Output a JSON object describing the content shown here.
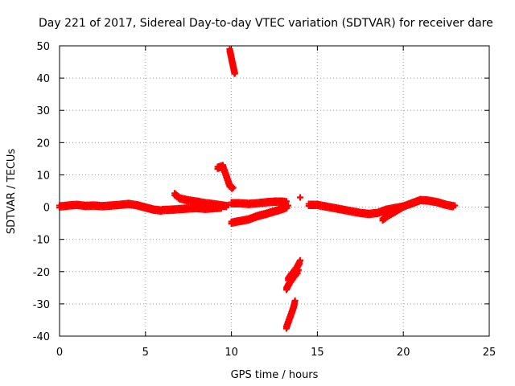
{
  "chart_data": {
    "type": "scatter",
    "title": "Day 221 of 2017, Sidereal Day-to-day VTEC variation (SDTVAR) for receiver dare",
    "xlabel": "GPS time / hours",
    "ylabel": "SDTVAR / TECUs",
    "xlim": [
      0,
      25
    ],
    "ylim": [
      -40,
      50
    ],
    "xticks": [
      0,
      5,
      10,
      15,
      20,
      25
    ],
    "yticks": [
      -40,
      -30,
      -20,
      -10,
      0,
      10,
      20,
      30,
      40,
      50
    ],
    "grid": true,
    "marker": "+",
    "color": "#ff0000",
    "series": [
      {
        "name": "band-0-6",
        "points": [
          [
            0,
            0.5
          ],
          [
            0.5,
            0.8
          ],
          [
            1,
            1.0
          ],
          [
            1.5,
            0.7
          ],
          [
            2,
            0.8
          ],
          [
            2.5,
            0.6
          ],
          [
            3,
            0.8
          ],
          [
            3.5,
            1.0
          ],
          [
            4,
            1.3
          ],
          [
            4.5,
            0.9
          ],
          [
            5,
            0.2
          ],
          [
            5.5,
            -0.5
          ],
          [
            6,
            -0.8
          ]
        ]
      },
      {
        "name": "band-6-10-upper",
        "points": [
          [
            6.7,
            4.3
          ],
          [
            7,
            3.0
          ],
          [
            7.5,
            2.4
          ],
          [
            8,
            2.0
          ],
          [
            8.5,
            1.5
          ],
          [
            9,
            1.2
          ],
          [
            9.5,
            0.8
          ],
          [
            9.8,
            0.6
          ]
        ]
      },
      {
        "name": "band-6-10-lower",
        "points": [
          [
            6,
            -0.6
          ],
          [
            6.5,
            -0.5
          ],
          [
            7,
            -0.3
          ],
          [
            7.5,
            -0.1
          ],
          [
            8,
            0.0
          ],
          [
            8.5,
            -0.2
          ],
          [
            9,
            0.0
          ],
          [
            9.5,
            0.2
          ]
        ]
      },
      {
        "name": "cluster-9.5",
        "points": [
          [
            9.2,
            12.5
          ],
          [
            9.5,
            13.0
          ],
          [
            9.9,
            7.0
          ],
          [
            10.1,
            6.0
          ]
        ]
      },
      {
        "name": "steep-10",
        "points": [
          [
            9.9,
            49.0
          ],
          [
            10.0,
            46.5
          ],
          [
            10.1,
            44.0
          ],
          [
            10.2,
            41.5
          ]
        ]
      },
      {
        "name": "band-10-13-upper",
        "points": [
          [
            10,
            1.5
          ],
          [
            10.5,
            1.5
          ],
          [
            11,
            1.3
          ],
          [
            11.5,
            1.5
          ],
          [
            12,
            1.8
          ],
          [
            12.5,
            2.0
          ],
          [
            13,
            2.0
          ],
          [
            13.2,
            1.8
          ]
        ]
      },
      {
        "name": "band-10-13-lower",
        "points": [
          [
            10,
            -4.5
          ],
          [
            10.5,
            -4.0
          ],
          [
            11,
            -3.5
          ],
          [
            11.5,
            -2.5
          ],
          [
            12,
            -1.8
          ],
          [
            12.5,
            -1.0
          ],
          [
            13,
            -0.2
          ],
          [
            13.3,
            0.5
          ]
        ]
      },
      {
        "name": "steep-13.5-a",
        "points": [
          [
            13.2,
            -37.0
          ],
          [
            13.4,
            -34.0
          ],
          [
            13.6,
            -31.0
          ],
          [
            13.7,
            -29.0
          ]
        ]
      },
      {
        "name": "steep-13.5-b",
        "points": [
          [
            13.3,
            -22.0
          ],
          [
            13.5,
            -20.5
          ],
          [
            13.8,
            -18.5
          ],
          [
            14.0,
            -16.5
          ]
        ]
      },
      {
        "name": "steep-13.5-c",
        "points": [
          [
            13.2,
            -25.0
          ],
          [
            13.4,
            -23.0
          ],
          [
            13.6,
            -21.5
          ],
          [
            13.9,
            -19.5
          ]
        ]
      },
      {
        "name": "isolated-14",
        "points": [
          [
            14.0,
            3.0
          ]
        ]
      },
      {
        "name": "band-14-23",
        "points": [
          [
            14.5,
            1.0
          ],
          [
            15,
            1.0
          ],
          [
            15.5,
            0.5
          ],
          [
            16,
            0.0
          ],
          [
            16.5,
            -0.5
          ],
          [
            17,
            -1.0
          ],
          [
            17.5,
            -1.5
          ],
          [
            18,
            -1.8
          ],
          [
            18.5,
            -1.5
          ],
          [
            19,
            -0.5
          ],
          [
            19.5,
            0.0
          ],
          [
            20,
            0.5
          ],
          [
            20.5,
            1.5
          ],
          [
            21,
            2.5
          ],
          [
            21.5,
            2.3
          ],
          [
            22,
            1.8
          ],
          [
            22.5,
            1.0
          ],
          [
            23,
            0.5
          ]
        ]
      },
      {
        "name": "branch-19",
        "points": [
          [
            18.8,
            -3.5
          ],
          [
            19.2,
            -2.0
          ],
          [
            19.6,
            -0.8
          ],
          [
            20,
            0.5
          ]
        ]
      }
    ]
  }
}
